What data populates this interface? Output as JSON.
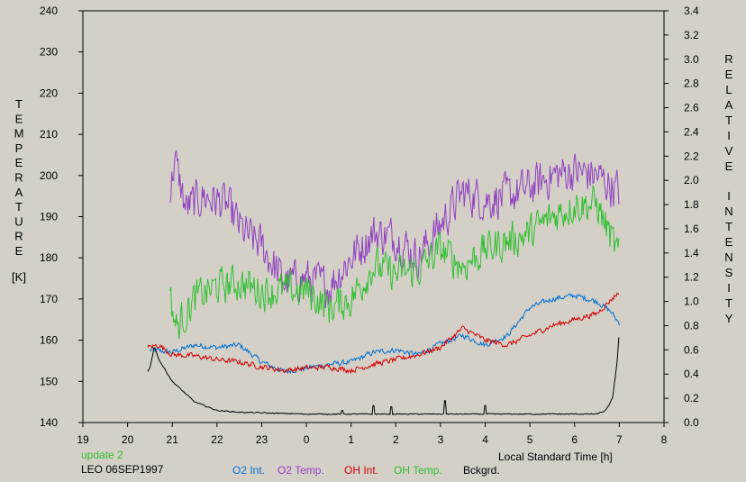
{
  "chart_data": {
    "type": "line",
    "xlabel": "Local Standard Time [h]",
    "ylabel_left": "TEMPERATURE",
    "ylabel_left_unit": "[K]",
    "ylabel_right": "RELATIVE INTENSITY",
    "x_ticks": [
      "19",
      "20",
      "21",
      "22",
      "23",
      "0",
      "1",
      "2",
      "3",
      "4",
      "5",
      "6",
      "7",
      "8"
    ],
    "x_range_hours": [
      19,
      32
    ],
    "y_left_range": [
      140,
      240
    ],
    "y_left_ticks": [
      140,
      150,
      160,
      170,
      180,
      190,
      200,
      210,
      220,
      230,
      240
    ],
    "y_right_range": [
      0.0,
      3.4
    ],
    "y_right_ticks": [
      "0.0",
      "0.2",
      "0.4",
      "0.6",
      "0.8",
      "1.0",
      "1.2",
      "1.4",
      "1.6",
      "1.8",
      "2.0",
      "2.2",
      "2.4",
      "2.6",
      "2.8",
      "3.0",
      "3.2",
      "3.4"
    ],
    "grid": false,
    "series": [
      {
        "name": "O2 Int.",
        "axis": "right",
        "color": "#0070d0",
        "noise": 0.02,
        "points": [
          [
            20.5,
            0.6
          ],
          [
            21.0,
            0.58
          ],
          [
            21.5,
            0.64
          ],
          [
            22.0,
            0.62
          ],
          [
            22.5,
            0.64
          ],
          [
            23.0,
            0.5
          ],
          [
            23.5,
            0.42
          ],
          [
            24.0,
            0.45
          ],
          [
            24.5,
            0.48
          ],
          [
            25.0,
            0.5
          ],
          [
            25.5,
            0.58
          ],
          [
            26.0,
            0.6
          ],
          [
            26.5,
            0.56
          ],
          [
            27.0,
            0.65
          ],
          [
            27.5,
            0.72
          ],
          [
            28.0,
            0.64
          ],
          [
            28.5,
            0.72
          ],
          [
            29.0,
            0.95
          ],
          [
            29.5,
            1.02
          ],
          [
            30.0,
            1.05
          ],
          [
            30.5,
            1.0
          ],
          [
            30.8,
            0.92
          ],
          [
            31.0,
            0.82
          ]
        ]
      },
      {
        "name": "O2 Temp.",
        "axis": "left",
        "color": "#9040c0",
        "noise": 4.5,
        "points": [
          [
            20.95,
            195
          ],
          [
            21.05,
            204
          ],
          [
            21.3,
            192
          ],
          [
            21.7,
            195
          ],
          [
            22.2,
            193
          ],
          [
            22.6,
            186
          ],
          [
            23.0,
            183
          ],
          [
            23.5,
            174
          ],
          [
            24.0,
            175
          ],
          [
            24.5,
            173
          ],
          [
            25.0,
            180
          ],
          [
            25.5,
            186
          ],
          [
            26.0,
            185
          ],
          [
            26.5,
            180
          ],
          [
            27.0,
            188
          ],
          [
            27.5,
            196
          ],
          [
            28.0,
            194
          ],
          [
            28.5,
            195
          ],
          [
            29.0,
            197
          ],
          [
            29.5,
            200
          ],
          [
            30.0,
            201
          ],
          [
            30.5,
            200
          ],
          [
            31.0,
            196
          ]
        ]
      },
      {
        "name": "OH Int.",
        "axis": "right",
        "color": "#d00000",
        "noise": 0.02,
        "points": [
          [
            20.45,
            0.62
          ],
          [
            20.7,
            0.64
          ],
          [
            21.0,
            0.56
          ],
          [
            21.5,
            0.55
          ],
          [
            22.0,
            0.52
          ],
          [
            22.5,
            0.5
          ],
          [
            23.0,
            0.46
          ],
          [
            23.5,
            0.43
          ],
          [
            24.0,
            0.45
          ],
          [
            24.5,
            0.46
          ],
          [
            25.0,
            0.43
          ],
          [
            25.5,
            0.48
          ],
          [
            26.0,
            0.52
          ],
          [
            26.5,
            0.56
          ],
          [
            27.0,
            0.62
          ],
          [
            27.5,
            0.78
          ],
          [
            28.0,
            0.68
          ],
          [
            28.5,
            0.64
          ],
          [
            29.0,
            0.72
          ],
          [
            29.5,
            0.8
          ],
          [
            30.0,
            0.85
          ],
          [
            30.5,
            0.9
          ],
          [
            31.0,
            1.08
          ]
        ]
      },
      {
        "name": "OH Temp.",
        "axis": "left",
        "color": "#30c030",
        "noise": 4.0,
        "points": [
          [
            20.95,
            170
          ],
          [
            21.1,
            163
          ],
          [
            21.5,
            170
          ],
          [
            22.0,
            173
          ],
          [
            22.5,
            174
          ],
          [
            23.0,
            172
          ],
          [
            23.5,
            172
          ],
          [
            24.0,
            172
          ],
          [
            24.5,
            168
          ],
          [
            25.0,
            170
          ],
          [
            25.5,
            178
          ],
          [
            26.0,
            176
          ],
          [
            26.5,
            177
          ],
          [
            27.0,
            182
          ],
          [
            27.5,
            178
          ],
          [
            28.0,
            182
          ],
          [
            28.5,
            184
          ],
          [
            29.0,
            186
          ],
          [
            29.5,
            190
          ],
          [
            30.0,
            193
          ],
          [
            30.5,
            193
          ],
          [
            31.0,
            180
          ]
        ]
      },
      {
        "name": "Bckgrd.",
        "axis": "right",
        "color": "#000000",
        "noise": 0.004,
        "points": [
          [
            20.45,
            0.42
          ],
          [
            20.5,
            0.45
          ],
          [
            20.6,
            0.63
          ],
          [
            20.7,
            0.52
          ],
          [
            21.0,
            0.34
          ],
          [
            21.5,
            0.17
          ],
          [
            22.0,
            0.1
          ],
          [
            22.5,
            0.085
          ],
          [
            23.0,
            0.08
          ],
          [
            24.0,
            0.07
          ],
          [
            25.0,
            0.07
          ],
          [
            26.0,
            0.07
          ],
          [
            27.0,
            0.07
          ],
          [
            28.0,
            0.07
          ],
          [
            29.0,
            0.07
          ],
          [
            30.0,
            0.07
          ],
          [
            30.5,
            0.07
          ],
          [
            30.7,
            0.1
          ],
          [
            30.85,
            0.2
          ],
          [
            30.95,
            0.5
          ],
          [
            31.0,
            0.75
          ]
        ],
        "spikes": [
          [
            24.8,
            0.1
          ],
          [
            25.5,
            0.14
          ],
          [
            25.9,
            0.13
          ],
          [
            27.1,
            0.18
          ],
          [
            28.0,
            0.14
          ]
        ]
      }
    ]
  },
  "footer": {
    "update": "update 2",
    "station": "LEO 06SEP1997"
  }
}
